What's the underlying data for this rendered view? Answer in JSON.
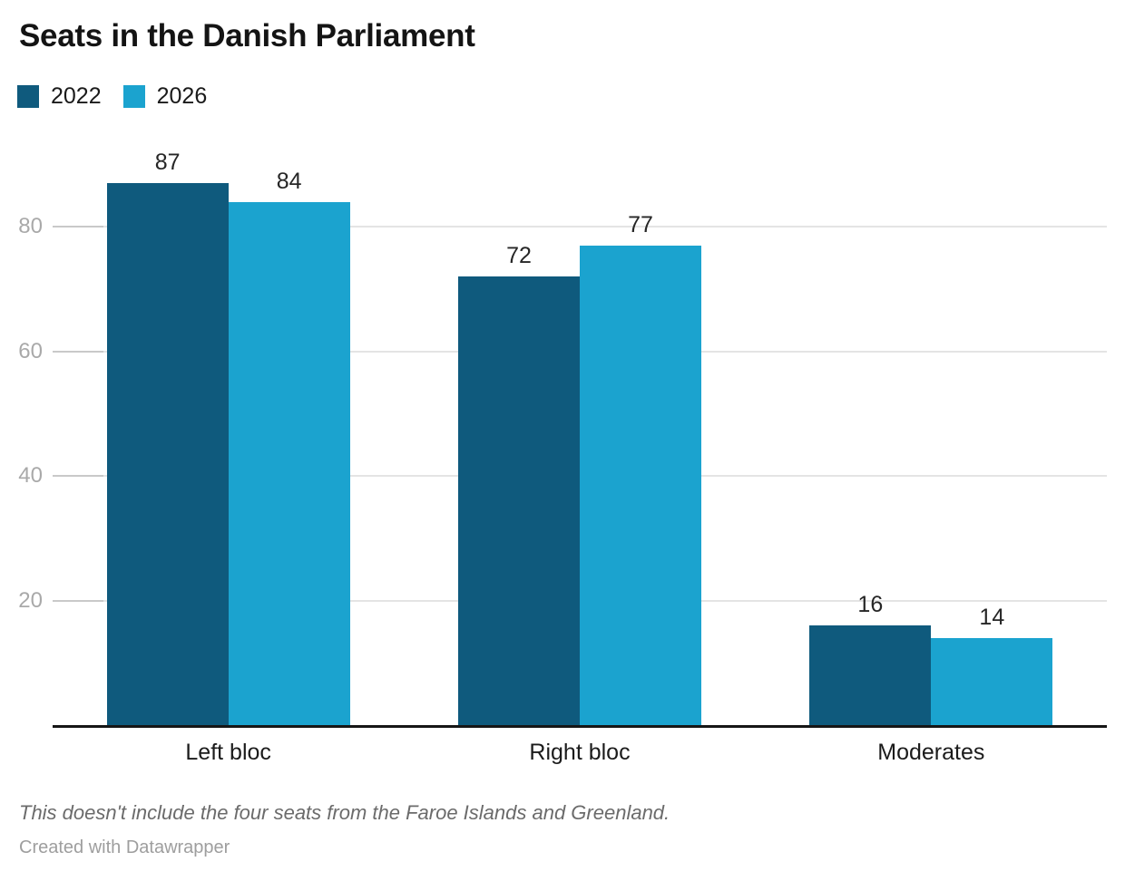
{
  "chart_data": {
    "type": "bar",
    "title": "Seats in the Danish Parliament",
    "categories": [
      "Left bloc",
      "Right bloc",
      "Moderates"
    ],
    "series": [
      {
        "name": "2022",
        "color": "#0f5a7d",
        "values": [
          87,
          72,
          16
        ]
      },
      {
        "name": "2026",
        "color": "#1ba3cf",
        "values": [
          84,
          77,
          14
        ]
      }
    ],
    "xlabel": "",
    "ylabel": "",
    "yticks": [
      20,
      40,
      60,
      80
    ],
    "ylim": [
      0,
      96
    ],
    "grid": true,
    "legend_position": "top-left",
    "value_labels": true
  },
  "colors": {
    "series_2022": "#0f5a7d",
    "series_2026": "#1ba3cf",
    "axis_line": "#161616",
    "gridline": "#e4e4e4",
    "tick_label": "#a9a9a9"
  },
  "footer": {
    "note": "This doesn't include the four seats from the Faroe Islands and Greenland.",
    "attribution": "Created with Datawrapper"
  }
}
